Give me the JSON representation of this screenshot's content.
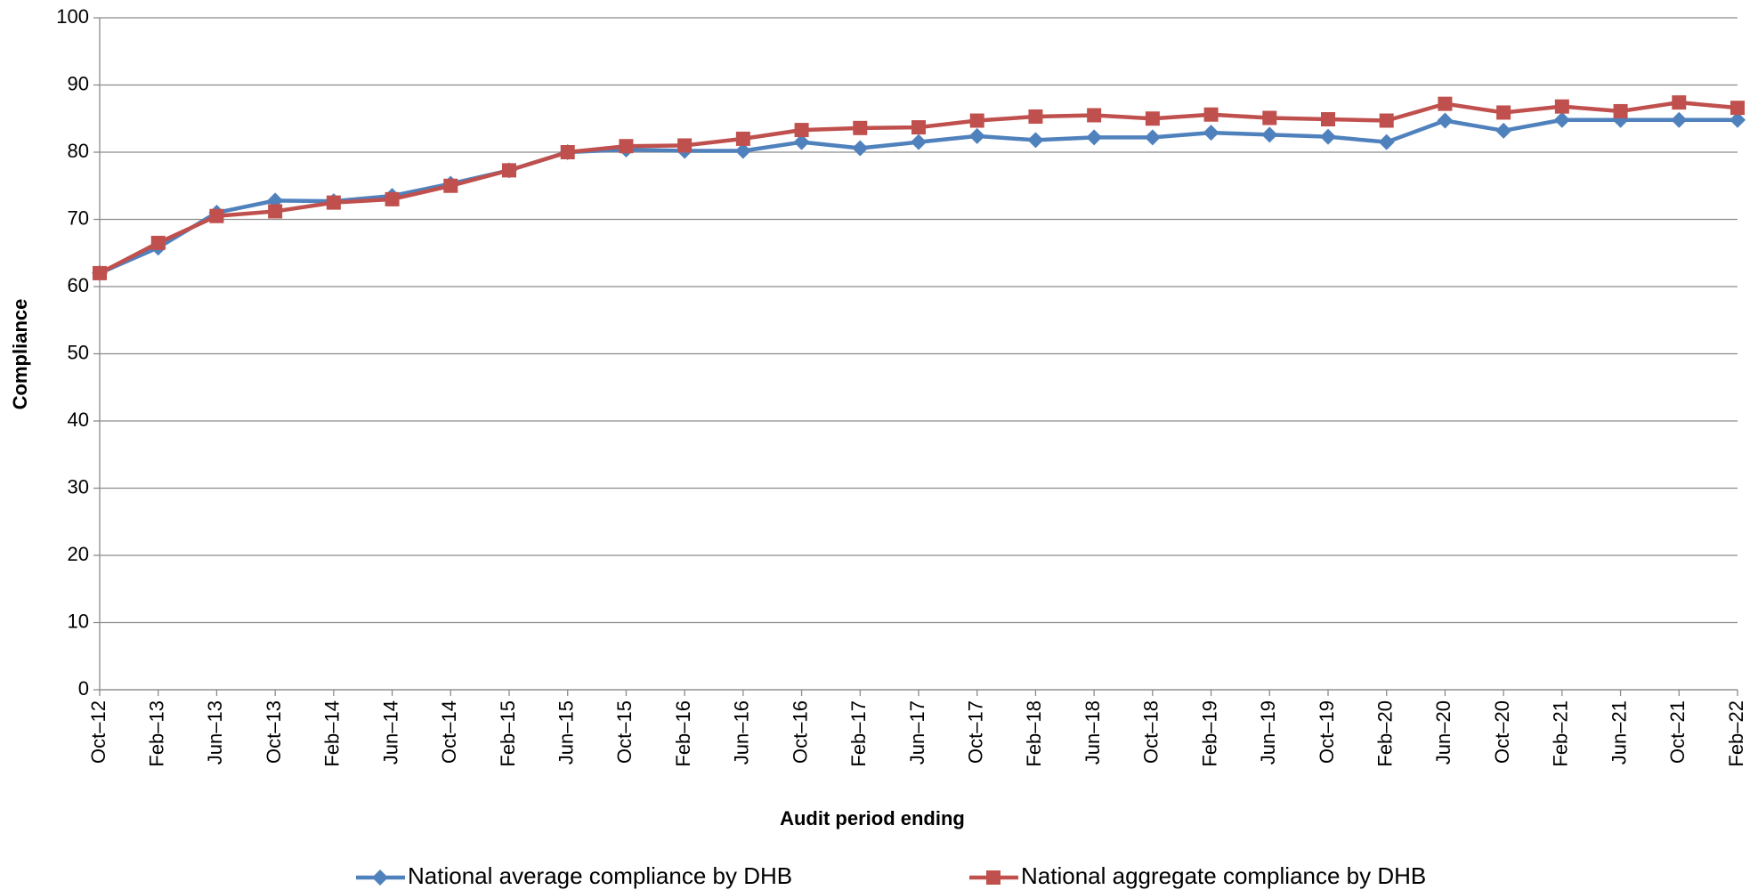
{
  "chart_data": {
    "type": "line",
    "x_label": "Audit period ending",
    "y_label": "Compliance",
    "categories": [
      "Oct–12",
      "Feb–13",
      "Jun–13",
      "Oct–13",
      "Feb–14",
      "Jun–14",
      "Oct–14",
      "Feb–15",
      "Jun–15",
      "Oct–15",
      "Feb–16",
      "Jun–16",
      "Oct–16",
      "Feb–17",
      "Jun–17",
      "Oct–17",
      "Feb–18",
      "Jun–18",
      "Oct–18",
      "Feb–19",
      "Jun–19",
      "Oct–19",
      "Feb–20",
      "Jun–20",
      "Oct–20",
      "Feb–21",
      "Jun–21",
      "Oct–21",
      "Feb–22"
    ],
    "series": [
      {
        "name": "National average compliance by DHB",
        "color": "#4f81bd",
        "marker": "diamond",
        "values": [
          62,
          65.8,
          71,
          72.8,
          72.7,
          73.5,
          75.3,
          77.3,
          80,
          80.4,
          80.2,
          80.2,
          81.5,
          80.6,
          81.5,
          82.4,
          81.8,
          82.2,
          82.2,
          82.9,
          82.6,
          82.3,
          81.5,
          84.7,
          83.2,
          84.8,
          84.8,
          84.8,
          84.8
        ]
      },
      {
        "name": "National aggregate compliance by DHB",
        "color": "#c0504d",
        "marker": "square",
        "values": [
          62,
          66.5,
          70.5,
          71.2,
          72.5,
          73,
          75,
          77.3,
          80,
          80.9,
          81,
          82,
          83.3,
          83.6,
          83.7,
          84.7,
          85.3,
          85.5,
          85,
          85.6,
          85.1,
          84.9,
          84.7,
          87.2,
          85.9,
          86.8,
          86.1,
          87.4,
          86.6
        ]
      }
    ],
    "ylim": [
      0,
      100
    ],
    "yticks": [
      0,
      10,
      20,
      30,
      40,
      50,
      60,
      70,
      80,
      90,
      100
    ],
    "grid": true,
    "legend": "bottom"
  }
}
